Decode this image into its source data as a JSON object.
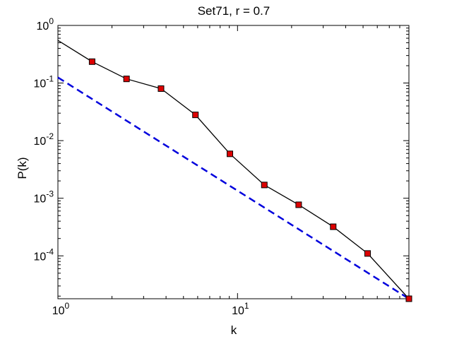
{
  "chart_data": {
    "type": "line",
    "title": "Set71, r = 0.7",
    "xlabel": "k",
    "ylabel": "P(k)",
    "x_scale": "log",
    "y_scale": "log",
    "xlim": [
      1,
      90
    ],
    "ylim": [
      1.8e-05,
      1
    ],
    "grid": false,
    "x_ticks": [
      {
        "base": "10",
        "exp": "0",
        "value": 1
      },
      {
        "base": "10",
        "exp": "1",
        "value": 10
      }
    ],
    "y_ticks": [
      {
        "base": "10",
        "exp": "0",
        "value": 1
      },
      {
        "base": "10",
        "exp": "-1",
        "value": 0.1
      },
      {
        "base": "10",
        "exp": "-2",
        "value": 0.01
      },
      {
        "base": "10",
        "exp": "-3",
        "value": 0.001
      },
      {
        "base": "10",
        "exp": "-4",
        "value": 0.0001
      }
    ],
    "series": [
      {
        "color": "#000000",
        "marker": "square",
        "marker_color": "#dd0000",
        "line_style": "solid",
        "x": [
          1.0,
          1.55,
          2.41,
          3.75,
          5.83,
          9.07,
          14.1,
          21.9,
          34.1,
          53.0,
          90.0
        ],
        "y": [
          0.55,
          0.235,
          0.118,
          0.08,
          0.028,
          0.0059,
          0.0017,
          0.00077,
          0.00032,
          0.00011,
          1.8e-05
        ],
        "marker_mask": [
          false,
          true,
          true,
          true,
          true,
          true,
          true,
          true,
          true,
          true,
          true
        ]
      },
      {
        "color": "#0000dd",
        "line_style": "dashed",
        "x": [
          1.0,
          90.0
        ],
        "y": [
          0.125,
          1.8e-05
        ]
      }
    ]
  }
}
